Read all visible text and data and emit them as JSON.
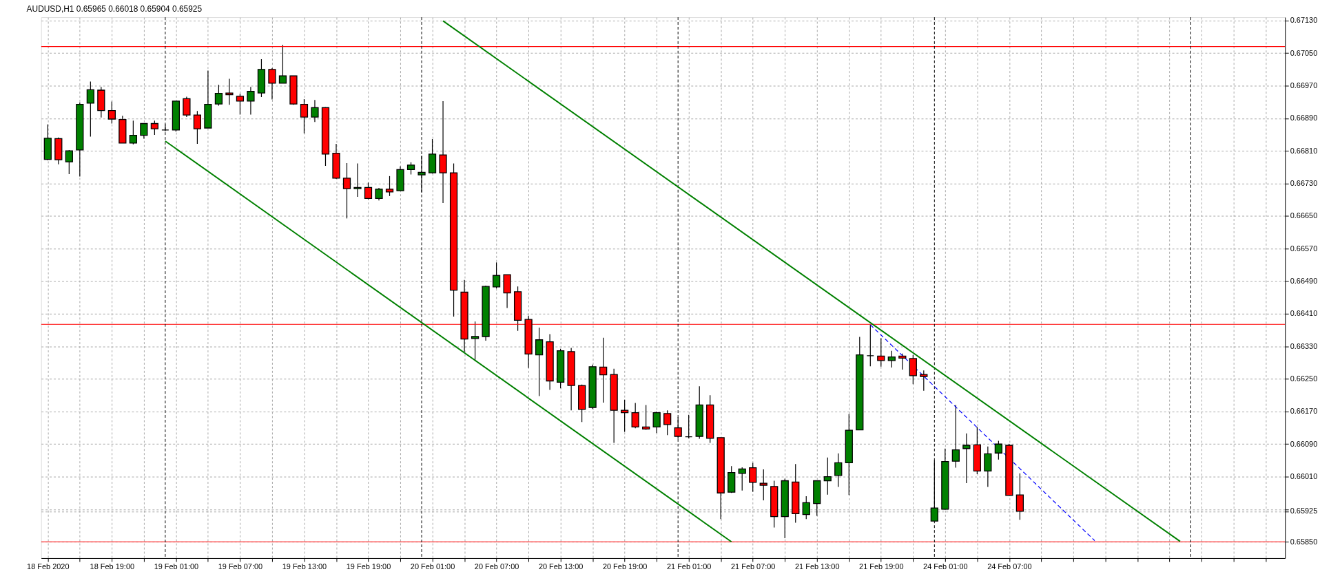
{
  "chart_data": {
    "type": "candlestick",
    "title": "AUDUSD,H1  0.65965 0.66018 0.65904 0.65925",
    "categories": [
      "18 Feb 2020",
      null,
      null,
      null,
      null,
      null,
      "18 Feb 19:00",
      null,
      null,
      null,
      null,
      null,
      "19 Feb 01:00",
      null,
      null,
      null,
      null,
      null,
      "19 Feb 07:00",
      null,
      null,
      null,
      null,
      null,
      "19 Feb 13:00",
      null,
      null,
      null,
      null,
      null,
      "19 Feb 19:00",
      null,
      null,
      null,
      null,
      null,
      "20 Feb 01:00",
      null,
      null,
      null,
      null,
      null,
      "20 Feb 07:00",
      null,
      null,
      null,
      null,
      null,
      "20 Feb 13:00",
      null,
      null,
      null,
      null,
      null,
      "20 Feb 19:00",
      null,
      null,
      null,
      null,
      null,
      "21 Feb 01:00",
      null,
      null,
      null,
      null,
      null,
      "21 Feb 07:00",
      null,
      null,
      null,
      null,
      null,
      "21 Feb 13:00",
      null,
      null,
      null,
      null,
      null,
      "21 Feb 19:00",
      null,
      null,
      null,
      null,
      null,
      "24 Feb 01:00",
      null,
      null,
      null,
      null,
      null,
      "24 Feb 07:00",
      null,
      null,
      null,
      null,
      null,
      null,
      null,
      null,
      null,
      null,
      null,
      null,
      null,
      null,
      null,
      null,
      null,
      null,
      null,
      null,
      null,
      null,
      null,
      null,
      null
    ],
    "ohlc": [
      [
        0.66789,
        0.66875,
        0.66787,
        0.66841
      ],
      [
        0.6684,
        0.66843,
        0.66777,
        0.66788
      ],
      [
        0.66783,
        0.66812,
        0.66753,
        0.6681
      ],
      [
        0.66812,
        0.66929,
        0.66747,
        0.66924
      ],
      [
        0.66927,
        0.6698,
        0.66845,
        0.6696
      ],
      [
        0.66959,
        0.66967,
        0.66892,
        0.66909
      ],
      [
        0.66909,
        0.66931,
        0.66877,
        0.66888
      ],
      [
        0.66887,
        0.66896,
        0.66829,
        0.66829
      ],
      [
        0.66829,
        0.66884,
        0.66826,
        0.66848
      ],
      [
        0.66848,
        0.66877,
        0.6684,
        0.66877
      ],
      [
        0.66877,
        0.66884,
        0.66849,
        0.66864
      ],
      [
        0.66861,
        0.66875,
        0.66858,
        0.66861
      ],
      [
        0.66861,
        0.66932,
        0.66857,
        0.66932
      ],
      [
        0.66938,
        0.66943,
        0.66893,
        0.66898
      ],
      [
        0.66898,
        0.66908,
        0.66827,
        0.66864
      ],
      [
        0.66866,
        0.67007,
        0.66866,
        0.66924
      ],
      [
        0.66925,
        0.66972,
        0.66921,
        0.66951
      ],
      [
        0.66952,
        0.66987,
        0.66923,
        0.66948
      ],
      [
        0.66944,
        0.6695,
        0.66899,
        0.66932
      ],
      [
        0.66932,
        0.66967,
        0.66899,
        0.66956
      ],
      [
        0.66952,
        0.67035,
        0.66942,
        0.6701
      ],
      [
        0.6701,
        0.67013,
        0.66936,
        0.66976
      ],
      [
        0.66976,
        0.6707,
        0.66976,
        0.66994
      ],
      [
        0.66994,
        0.66994,
        0.66923,
        0.66925
      ],
      [
        0.66924,
        0.66937,
        0.66853,
        0.66893
      ],
      [
        0.66893,
        0.66935,
        0.66881,
        0.66916
      ],
      [
        0.66916,
        0.66917,
        0.66773,
        0.66802
      ],
      [
        0.66804,
        0.66827,
        0.66741,
        0.66743
      ],
      [
        0.66743,
        0.6678,
        0.66644,
        0.66717
      ],
      [
        0.66717,
        0.66779,
        0.66697,
        0.6672
      ],
      [
        0.6672,
        0.66732,
        0.66691,
        0.66693
      ],
      [
        0.66693,
        0.66719,
        0.66688,
        0.66716
      ],
      [
        0.66716,
        0.66748,
        0.66699,
        0.66709
      ],
      [
        0.66712,
        0.66772,
        0.66712,
        0.66764
      ],
      [
        0.66764,
        0.66782,
        0.66752,
        0.66775
      ],
      [
        0.66751,
        0.66798,
        0.66708,
        0.66757
      ],
      [
        0.66756,
        0.66839,
        0.66754,
        0.66802
      ],
      [
        0.668,
        0.66932,
        0.66682,
        0.66756
      ],
      [
        0.66756,
        0.66779,
        0.66403,
        0.66468
      ],
      [
        0.66463,
        0.66493,
        0.66317,
        0.66348
      ],
      [
        0.66349,
        0.66391,
        0.66294,
        0.66354
      ],
      [
        0.66354,
        0.66479,
        0.66344,
        0.66477
      ],
      [
        0.66476,
        0.66536,
        0.66472,
        0.66504
      ],
      [
        0.66506,
        0.66506,
        0.66424,
        0.66461
      ],
      [
        0.66464,
        0.66477,
        0.66368,
        0.66394
      ],
      [
        0.66396,
        0.66405,
        0.66277,
        0.66311
      ],
      [
        0.66309,
        0.66376,
        0.66208,
        0.66346
      ],
      [
        0.66341,
        0.6636,
        0.66223,
        0.66245
      ],
      [
        0.66242,
        0.66324,
        0.66227,
        0.66319
      ],
      [
        0.66317,
        0.66326,
        0.66173,
        0.66234
      ],
      [
        0.66234,
        0.66236,
        0.66144,
        0.66175
      ],
      [
        0.6618,
        0.66285,
        0.66176,
        0.6628
      ],
      [
        0.66279,
        0.66351,
        0.66192,
        0.6626
      ],
      [
        0.66261,
        0.66275,
        0.66093,
        0.66173
      ],
      [
        0.66173,
        0.66199,
        0.6612,
        0.66167
      ],
      [
        0.66167,
        0.66191,
        0.66129,
        0.66132
      ],
      [
        0.66132,
        0.66186,
        0.66125,
        0.66127
      ],
      [
        0.66132,
        0.6617,
        0.66117,
        0.66167
      ],
      [
        0.66165,
        0.66173,
        0.66112,
        0.66138
      ],
      [
        0.6613,
        0.66156,
        0.66103,
        0.66109
      ],
      [
        0.66108,
        0.66162,
        0.66104,
        0.66108
      ],
      [
        0.66109,
        0.66232,
        0.66103,
        0.66186
      ],
      [
        0.66186,
        0.6621,
        0.66093,
        0.66104
      ],
      [
        0.66106,
        0.66106,
        0.65906,
        0.6597
      ],
      [
        0.65972,
        0.66036,
        0.6597,
        0.6602
      ],
      [
        0.66018,
        0.66033,
        0.65976,
        0.66029
      ],
      [
        0.66032,
        0.66044,
        0.65973,
        0.65996
      ],
      [
        0.65994,
        0.66028,
        0.65952,
        0.65989
      ],
      [
        0.65986,
        0.66,
        0.65885,
        0.65912
      ],
      [
        0.65912,
        0.66005,
        0.65859,
        0.66
      ],
      [
        0.65997,
        0.66041,
        0.65897,
        0.65919
      ],
      [
        0.65917,
        0.65962,
        0.65906,
        0.65946
      ],
      [
        0.65944,
        0.66,
        0.65914,
        0.66
      ],
      [
        0.66,
        0.66057,
        0.65966,
        0.6601
      ],
      [
        0.66013,
        0.66067,
        0.65985,
        0.66044
      ],
      [
        0.66044,
        0.66164,
        0.65965,
        0.66124
      ],
      [
        0.66125,
        0.66353,
        0.66124,
        0.66309
      ],
      [
        0.66307,
        0.66383,
        0.66281,
        0.66307
      ],
      [
        0.66306,
        0.6635,
        0.6628,
        0.66295
      ],
      [
        0.66295,
        0.66319,
        0.66278,
        0.66304
      ],
      [
        0.66306,
        0.66312,
        0.66273,
        0.66301
      ],
      [
        0.663,
        0.66309,
        0.66237,
        0.66258
      ],
      [
        0.66261,
        0.66271,
        0.66221,
        0.66256
      ],
      [
        0.65901,
        0.6605,
        0.65901,
        0.65933
      ],
      [
        0.6593,
        0.66079,
        0.65928,
        0.66047
      ],
      [
        0.66048,
        0.66186,
        0.66032,
        0.66076
      ],
      [
        0.66079,
        0.66116,
        0.65994,
        0.66087
      ],
      [
        0.66088,
        0.66132,
        0.66016,
        0.66024
      ],
      [
        0.66024,
        0.66084,
        0.65985,
        0.66066
      ],
      [
        0.66068,
        0.66098,
        0.66052,
        0.6609
      ],
      [
        0.66087,
        0.6609,
        0.65964,
        0.65964
      ],
      [
        0.65965,
        0.66018,
        0.65904,
        0.65925
      ],
      null,
      null,
      null,
      null,
      null,
      null,
      null,
      null,
      null,
      null,
      null,
      null,
      null,
      null,
      null,
      null,
      null,
      null,
      null,
      null,
      null,
      null,
      null,
      null
    ],
    "colors": [
      "#008000",
      "#ff0000",
      "#008000",
      "#008000",
      "#008000",
      "#ff0000",
      "#ff0000",
      "#ff0000",
      "#008000",
      "#008000",
      "#ff0000",
      "#000000",
      "#008000",
      "#ff0000",
      "#ff0000",
      "#008000",
      "#008000",
      "#ff0000",
      "#ff0000",
      "#008000",
      "#008000",
      "#ff0000",
      "#008000",
      "#ff0000",
      "#ff0000",
      "#008000",
      "#ff0000",
      "#ff0000",
      "#ff0000",
      "#008000",
      "#ff0000",
      "#008000",
      "#ff0000",
      "#008000",
      "#008000",
      "#008000",
      "#008000",
      "#ff0000",
      "#ff0000",
      "#ff0000",
      "#008000",
      "#008000",
      "#008000",
      "#ff0000",
      "#ff0000",
      "#ff0000",
      "#008000",
      "#ff0000",
      "#008000",
      "#ff0000",
      "#ff0000",
      "#008000",
      "#ff0000",
      "#ff0000",
      "#ff0000",
      "#ff0000",
      "#ff0000",
      "#008000",
      "#ff0000",
      "#ff0000",
      "#000000",
      "#008000",
      "#ff0000",
      "#ff0000",
      "#008000",
      "#008000",
      "#ff0000",
      "#ff0000",
      "#ff0000",
      "#008000",
      "#ff0000",
      "#008000",
      "#008000",
      "#008000",
      "#008000",
      "#008000",
      "#008000",
      "#000000",
      "#ff0000",
      "#008000",
      "#ff0000",
      "#ff0000",
      "#ff0000",
      "#008000",
      "#008000",
      "#008000",
      "#008000",
      "#ff0000",
      "#008000",
      "#008000",
      "#ff0000",
      "#ff0000",
      null,
      null,
      null,
      null,
      null,
      null,
      null,
      null,
      null,
      null,
      null,
      null,
      null,
      null,
      null,
      null,
      null,
      null,
      null,
      null,
      null,
      null,
      null,
      null
    ],
    "series": [
      {
        "type": "line",
        "color": "#008000",
        "line_style": "solid",
        "values": [
          null,
          null,
          null,
          null,
          null,
          null,
          null,
          null,
          null,
          null,
          null,
          null,
          null,
          null,
          null,
          null,
          null,
          null,
          null,
          null,
          null,
          null,
          null,
          null,
          null,
          null,
          null,
          null,
          null,
          null,
          null,
          null,
          null,
          null,
          null,
          null,
          null,
          0.67129,
          null,
          null,
          null,
          null,
          null,
          null,
          null,
          null,
          null,
          null,
          null,
          null,
          null,
          null,
          null,
          null,
          null,
          null,
          null,
          null,
          null,
          null,
          null,
          null,
          null,
          null,
          null,
          null,
          null,
          null,
          null,
          null,
          null,
          null,
          null,
          null,
          null,
          null,
          null,
          null,
          null,
          null,
          null,
          null,
          null,
          null,
          null,
          null,
          null,
          null,
          null,
          null,
          null,
          null,
          null,
          null,
          null,
          null,
          null,
          null,
          null,
          null,
          null,
          null,
          null,
          null,
          null,
          null,
          0.65851,
          null,
          null,
          null,
          null,
          null,
          null,
          null,
          null,
          null
        ]
      },
      {
        "type": "line",
        "color": "#008000",
        "line_style": "solid",
        "values": [
          null,
          null,
          null,
          null,
          null,
          null,
          null,
          null,
          null,
          null,
          null,
          0.66834,
          null,
          null,
          null,
          null,
          null,
          null,
          null,
          null,
          null,
          null,
          null,
          null,
          null,
          null,
          null,
          null,
          null,
          null,
          null,
          null,
          null,
          null,
          null,
          null,
          null,
          null,
          null,
          null,
          null,
          null,
          null,
          null,
          null,
          null,
          null,
          null,
          null,
          null,
          null,
          null,
          null,
          null,
          null,
          null,
          null,
          null,
          null,
          null,
          null,
          null,
          null,
          null,
          0.6585,
          null,
          null,
          null,
          null,
          null,
          null,
          null,
          null,
          null,
          null,
          null,
          null,
          null,
          null,
          null,
          null,
          null,
          null,
          null,
          null,
          null,
          null,
          null,
          null,
          null,
          null,
          null,
          null,
          null,
          null,
          null,
          null,
          null,
          null,
          null,
          null,
          null,
          null,
          null,
          null,
          null,
          null,
          null,
          null,
          null,
          null,
          null,
          null,
          null,
          null,
          null
        ]
      },
      {
        "type": "line",
        "color": "#0000ff",
        "line_style": "dashed",
        "values": [
          null,
          null,
          null,
          null,
          null,
          null,
          null,
          null,
          null,
          null,
          null,
          null,
          null,
          null,
          null,
          null,
          null,
          null,
          null,
          null,
          null,
          null,
          null,
          null,
          null,
          null,
          null,
          null,
          null,
          null,
          null,
          null,
          null,
          null,
          null,
          null,
          null,
          null,
          null,
          null,
          null,
          null,
          null,
          null,
          null,
          null,
          null,
          null,
          null,
          null,
          null,
          null,
          null,
          null,
          null,
          null,
          null,
          null,
          null,
          null,
          null,
          null,
          null,
          null,
          null,
          null,
          null,
          null,
          null,
          null,
          null,
          null,
          null,
          null,
          null,
          null,
          null,
          0.66383,
          null,
          null,
          null,
          null,
          null,
          null,
          null,
          null,
          null,
          null,
          null,
          null,
          null,
          null,
          null,
          null,
          null,
          null,
          null,
          null,
          0.65853,
          null,
          null,
          null,
          null,
          null,
          null,
          null,
          null,
          null,
          null,
          null,
          null,
          null,
          null,
          null,
          null,
          null
        ]
      }
    ],
    "ylim": [
      0.6581,
      0.67138
    ],
    "yticks": [
      {
        "value": 0.6585,
        "label": "0.65850"
      },
      {
        "value": 0.65925,
        "label": "0.65925"
      },
      {
        "value": 0.6593,
        "label": null
      },
      {
        "value": 0.6601,
        "label": "0.66010"
      },
      {
        "value": 0.6609,
        "label": "0.66090"
      },
      {
        "value": 0.6617,
        "label": "0.66170"
      },
      {
        "value": 0.6625,
        "label": "0.66250"
      },
      {
        "value": 0.6633,
        "label": "0.66330"
      },
      {
        "value": 0.6641,
        "label": "0.66410"
      },
      {
        "value": 0.6649,
        "label": "0.66490"
      },
      {
        "value": 0.6657,
        "label": "0.66570"
      },
      {
        "value": 0.6665,
        "label": "0.66650"
      },
      {
        "value": 0.6673,
        "label": "0.66730"
      },
      {
        "value": 0.6681,
        "label": "0.66810"
      },
      {
        "value": 0.6689,
        "label": "0.66890"
      },
      {
        "value": 0.6697,
        "label": "0.66970"
      },
      {
        "value": 0.6705,
        "label": "0.67050"
      },
      {
        "value": 0.6713,
        "label": "0.67130"
      }
    ],
    "ref_lines": [
      {
        "axis": "y",
        "value": 0.67066,
        "color": "#ff0000"
      },
      {
        "axis": "y",
        "value": 0.66384,
        "color": "#ff0000"
      },
      {
        "axis": "y",
        "value": 0.6585,
        "color": "#ff0000"
      }
    ],
    "grid": true
  }
}
